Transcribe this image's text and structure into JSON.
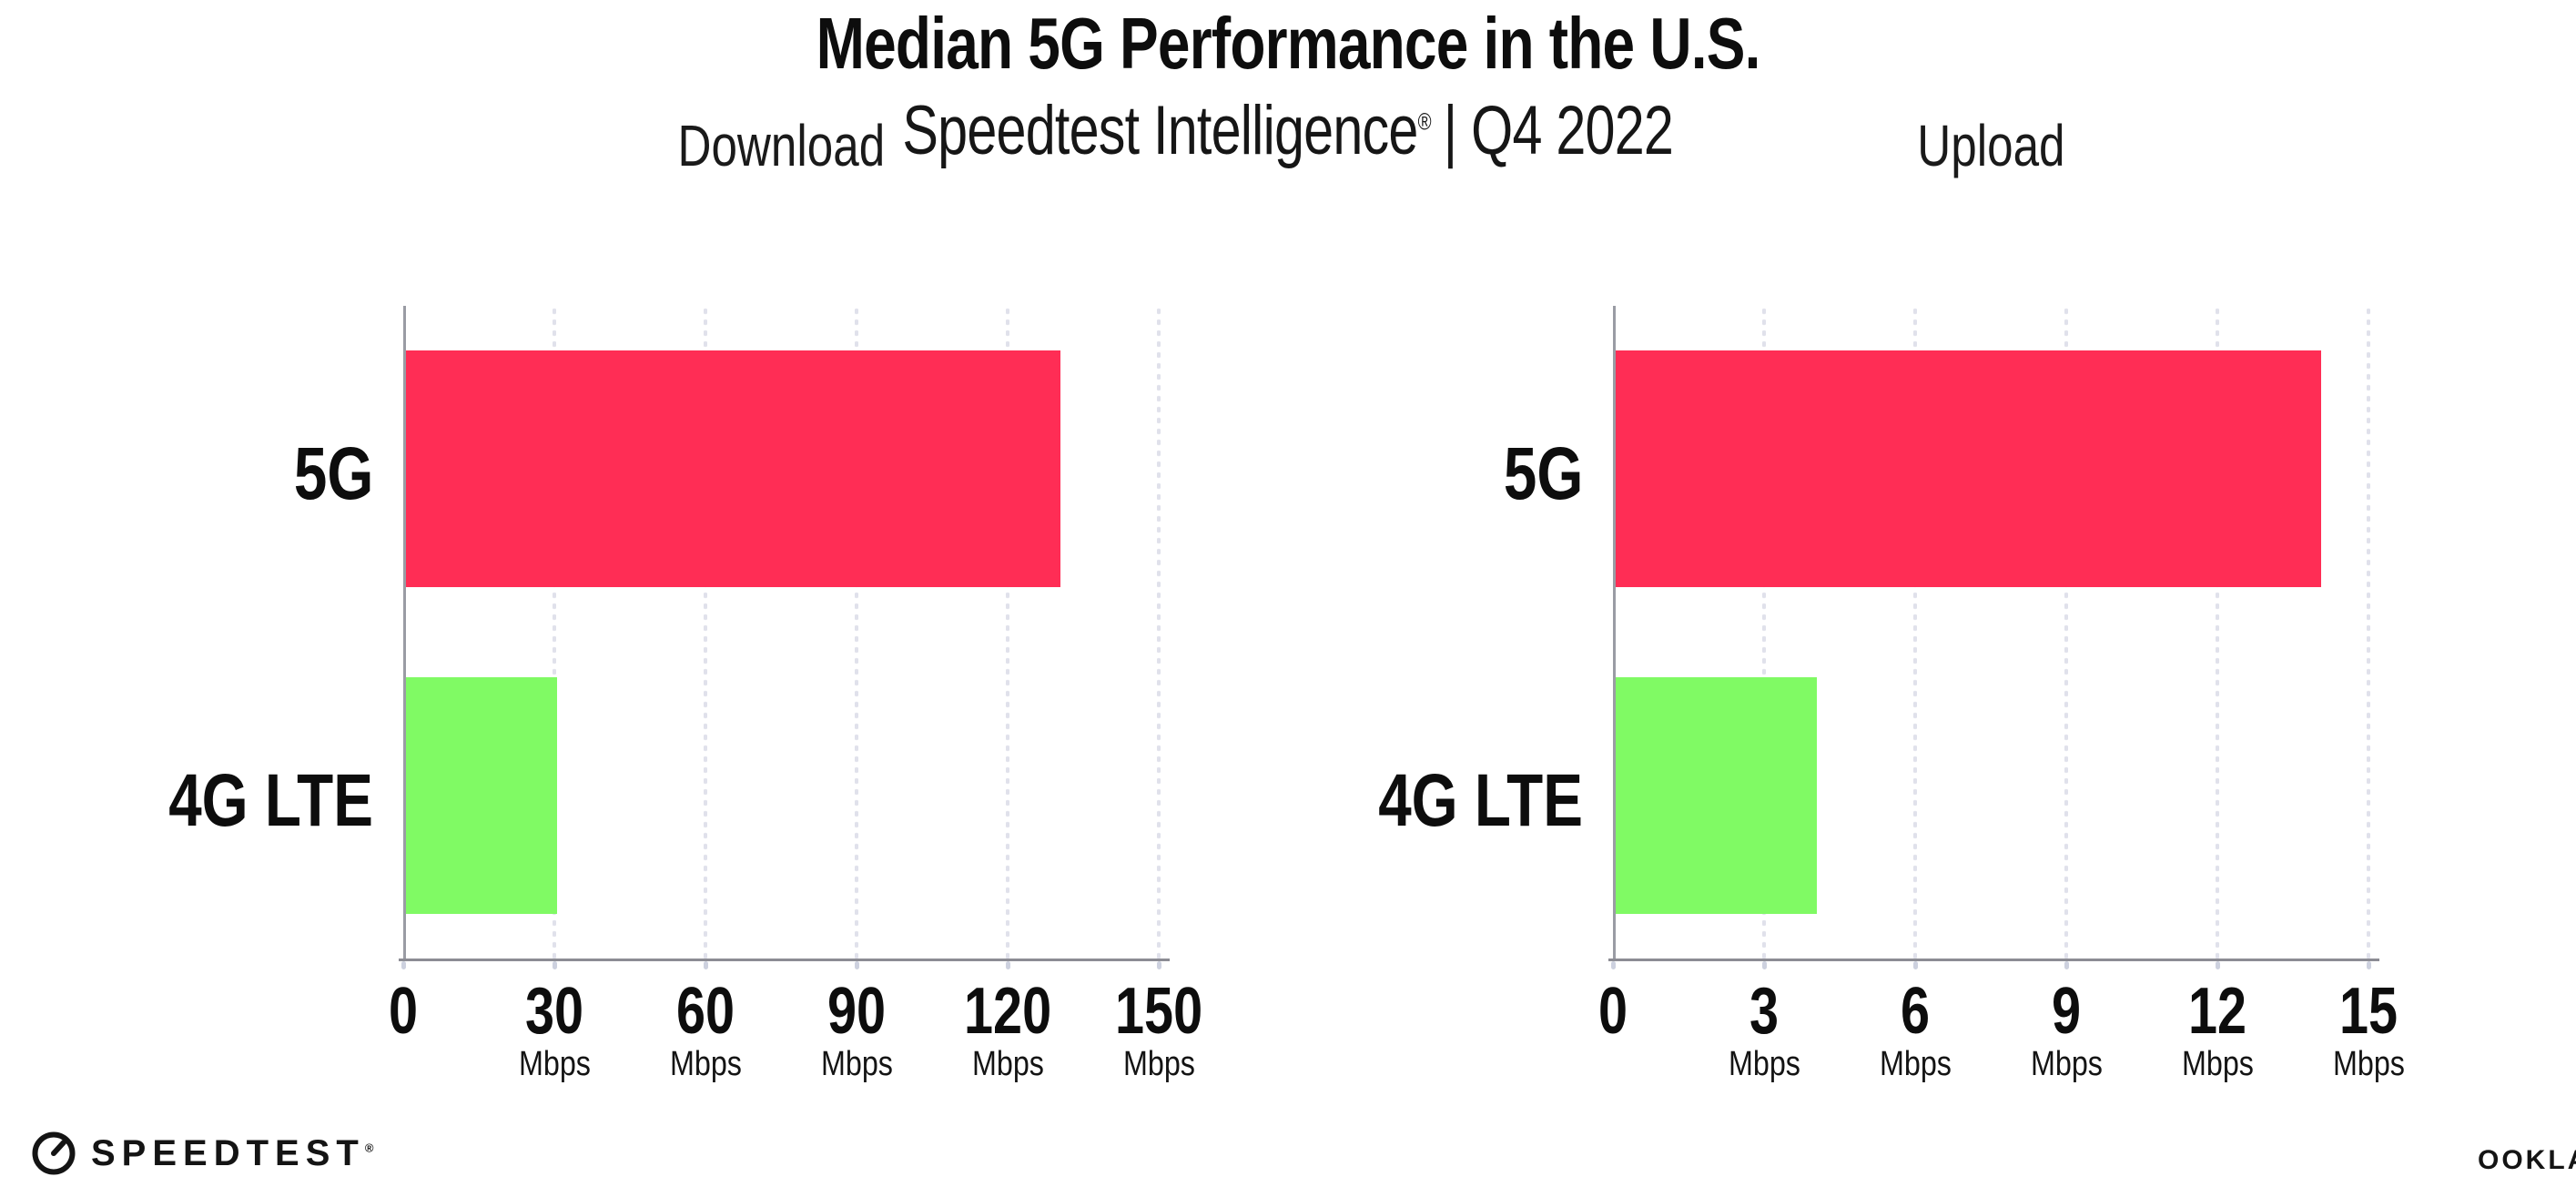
{
  "header": {
    "title": "Median 5G Performance in the U.S.",
    "subtitle": {
      "brand": "Speedtest Intelligence",
      "mark": "®",
      "rest": "| Q4 2022"
    }
  },
  "chart_data": [
    {
      "type": "bar",
      "orientation": "horizontal",
      "title": "Download",
      "categories": [
        "5G",
        "4G LTE"
      ],
      "values": [
        130,
        30
      ],
      "unit": "Mbps",
      "xlim": [
        0,
        150
      ],
      "xticks": [
        0,
        30,
        60,
        90,
        120,
        150
      ],
      "bar_colors": [
        "#FF2D55",
        "#80FA64"
      ],
      "grid": "dotted-vertical",
      "legend": "none",
      "xlabel": "",
      "ylabel": ""
    },
    {
      "type": "bar",
      "orientation": "horizontal",
      "title": "Upload",
      "categories": [
        "5G",
        "4G LTE"
      ],
      "values": [
        14,
        4
      ],
      "unit": "Mbps",
      "xlim": [
        0,
        15
      ],
      "xticks": [
        0,
        3,
        6,
        9,
        12,
        15
      ],
      "bar_colors": [
        "#FF2D55",
        "#80FA64"
      ],
      "grid": "dotted-vertical",
      "legend": "none",
      "xlabel": "",
      "ylabel": ""
    }
  ],
  "footer": {
    "speedtest": {
      "label": "SPEEDTEST",
      "mark": "®",
      "icon": "speedtest-gauge-icon"
    },
    "ookla": {
      "label": "OOKLA",
      "mark": "®"
    }
  },
  "colors": {
    "bar_5g": "#FF2D55",
    "bar_4g_lte": "#80FA64",
    "axis": "#8C8C94",
    "gridline_dots": "#E0E1EB",
    "tick_marks": "#CDD1DF",
    "text": "#111111"
  }
}
